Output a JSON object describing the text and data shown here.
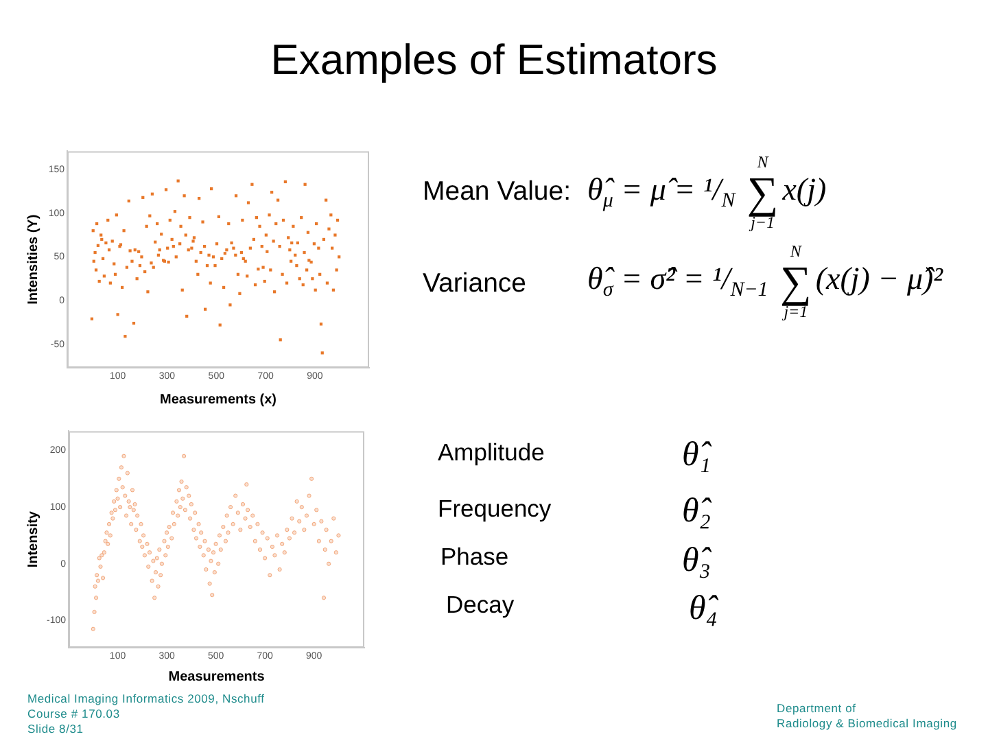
{
  "chart_data": [
    {
      "type": "scatter",
      "xlabel": "Measurements (x)",
      "ylabel": "Intensities (Y)",
      "color": "#e8782a",
      "marker": "square",
      "xlim": [
        -105,
        1120
      ],
      "ylim": [
        -77,
        171
      ],
      "xticks": [
        100,
        300,
        500,
        700,
        900
      ],
      "yticks": [
        -50,
        0,
        50,
        100,
        150
      ],
      "x": [
        -5,
        0,
        3,
        8,
        12,
        15,
        20,
        25,
        32,
        35,
        40,
        45,
        52,
        60,
        65,
        70,
        78,
        85,
        90,
        95,
        100,
        108,
        112,
        118,
        125,
        130,
        137,
        145,
        150,
        158,
        165,
        170,
        178,
        185,
        190,
        197,
        202,
        210,
        217,
        222,
        230,
        236,
        240,
        245,
        252,
        260,
        265,
        270,
        277,
        285,
        290,
        296,
        302,
        306,
        312,
        320,
        326,
        332,
        337,
        345,
        352,
        356,
        362,
        370,
        376,
        380,
        387,
        392,
        400,
        406,
        410,
        418,
        425,
        430,
        437,
        445,
        452,
        455,
        463,
        470,
        476,
        480,
        488,
        495,
        502,
        510,
        515,
        522,
        530,
        535,
        542,
        550,
        556,
        562,
        570,
        578,
        580,
        588,
        595,
        602,
        606,
        610,
        618,
        625,
        630,
        638,
        645,
        652,
        658,
        663,
        670,
        676,
        685,
        690,
        696,
        702,
        706,
        715,
        720,
        725,
        732,
        736,
        742,
        750,
        757,
        760,
        768,
        772,
        780,
        786,
        792,
        798,
        803,
        806,
        812,
        820,
        826,
        830,
        838,
        845,
        852,
        857,
        860,
        867,
        872,
        876,
        885,
        890,
        897,
        902,
        906,
        915,
        920,
        925,
        930,
        936,
        945,
        950,
        957,
        965,
        970,
        975,
        982,
        988,
        992,
        998
      ],
      "values": [
        -21,
        80,
        45,
        55,
        35,
        88,
        63,
        22,
        75,
        70,
        48,
        28,
        66,
        92,
        58,
        20,
        68,
        42,
        30,
        98,
        -16,
        62,
        64,
        15,
        80,
        -41,
        38,
        114,
        57,
        45,
        -26,
        58,
        25,
        56,
        40,
        50,
        118,
        33,
        85,
        10,
        97,
        43,
        122,
        38,
        67,
        88,
        52,
        58,
        76,
        46,
        45,
        127,
        60,
        44,
        92,
        70,
        62,
        102,
        50,
        137,
        65,
        85,
        12,
        120,
        75,
        -18,
        58,
        95,
        60,
        68,
        72,
        45,
        30,
        117,
        55,
        90,
        62,
        -10,
        40,
        52,
        20,
        128,
        50,
        40,
        65,
        96,
        -28,
        48,
        15,
        54,
        58,
        88,
        -5,
        66,
        60,
        52,
        120,
        30,
        8,
        55,
        92,
        48,
        45,
        28,
        112,
        60,
        133,
        70,
        18,
        95,
        36,
        85,
        62,
        38,
        22,
        75,
        56,
        98,
        35,
        124,
        68,
        10,
        88,
        115,
        62,
        -45,
        30,
        92,
        136,
        20,
        72,
        58,
        45,
        66,
        85,
        52,
        40,
        66,
        25,
        95,
        18,
        55,
        133,
        35,
        78,
        46,
        44,
        25,
        65,
        12,
        88,
        60,
        30,
        -27,
        -60,
        70,
        115,
        20,
        82,
        98,
        60,
        12,
        75,
        35,
        92,
        50
      ]
    },
    {
      "type": "scatter",
      "xlabel": "Measurements",
      "ylabel": "Intensity",
      "color": "#f3a87c",
      "marker": "circle",
      "xlim": [
        -100,
        1105
      ],
      "ylim": [
        -148,
        234
      ],
      "xticks": [
        100,
        300,
        500,
        700,
        900
      ],
      "yticks": [
        -100,
        0,
        100,
        200
      ],
      "x": [
        0,
        5,
        8,
        12,
        15,
        20,
        25,
        30,
        35,
        40,
        45,
        50,
        55,
        60,
        65,
        70,
        75,
        80,
        85,
        90,
        95,
        100,
        105,
        110,
        115,
        120,
        125,
        130,
        135,
        140,
        145,
        150,
        155,
        160,
        165,
        170,
        175,
        180,
        190,
        195,
        200,
        205,
        210,
        220,
        225,
        230,
        240,
        245,
        250,
        255,
        260,
        265,
        270,
        275,
        280,
        290,
        295,
        300,
        305,
        310,
        320,
        325,
        330,
        340,
        345,
        350,
        355,
        360,
        365,
        370,
        375,
        380,
        390,
        395,
        400,
        410,
        415,
        420,
        430,
        435,
        440,
        450,
        455,
        460,
        470,
        475,
        480,
        485,
        490,
        495,
        500,
        510,
        515,
        520,
        530,
        540,
        545,
        550,
        560,
        570,
        580,
        590,
        600,
        610,
        620,
        625,
        630,
        640,
        650,
        660,
        670,
        680,
        690,
        700,
        710,
        720,
        730,
        740,
        750,
        760,
        770,
        780,
        790,
        800,
        810,
        820,
        830,
        840,
        850,
        860,
        870,
        880,
        890,
        900,
        910,
        920,
        930,
        940,
        945,
        950,
        960,
        970,
        980,
        990,
        1000
      ],
      "values": [
        -115,
        -85,
        -40,
        -60,
        -20,
        -30,
        10,
        -5,
        15,
        -25,
        20,
        40,
        55,
        35,
        70,
        50,
        90,
        80,
        110,
        95,
        130,
        115,
        150,
        100,
        170,
        135,
        190,
        120,
        85,
        160,
        110,
        100,
        70,
        130,
        95,
        105,
        60,
        85,
        40,
        70,
        30,
        50,
        15,
        35,
        -5,
        20,
        -30,
        5,
        -60,
        -15,
        10,
        -40,
        25,
        -20,
        0,
        40,
        15,
        55,
        30,
        65,
        45,
        90,
        70,
        110,
        85,
        130,
        100,
        145,
        115,
        190,
        95,
        135,
        120,
        80,
        105,
        60,
        90,
        45,
        70,
        30,
        55,
        15,
        40,
        -10,
        25,
        -35,
        5,
        -55,
        20,
        -15,
        35,
        0,
        50,
        25,
        65,
        40,
        85,
        55,
        100,
        70,
        120,
        90,
        60,
        105,
        80,
        140,
        95,
        65,
        85,
        40,
        70,
        25,
        55,
        10,
        45,
        -20,
        30,
        15,
        50,
        -10,
        35,
        20,
        60,
        45,
        80,
        55,
        110,
        75,
        100,
        60,
        85,
        120,
        150,
        70,
        95,
        40,
        75,
        -60,
        25,
        60,
        0,
        40,
        80,
        20,
        50
      ]
    },
    {
      "type": "other",
      "title": "Examples of Estimators",
      "annotations": [
        "Mean Value:",
        "θ̂$_{μ}$ = μ̂ = ¹/$_{N}$ ∑$_{j−1}$$^{N}$x(j)",
        "Variance",
        "θ̂$_{σ}$ = σ̂² = ¹/$_{N−1}$ ∑$_{j=1}$$^{N}$(x(j) − μ̂)²",
        "Amplitude",
        "θ̂₁",
        "Frequency",
        "θ̂₂",
        "Phase",
        "θ̂₃",
        "Decay",
        "θ̂₄",
        "Medical Imaging Informatics 2009, Nschuff",
        "Course # 170.03",
        "Slide 8/31",
        "Department of",
        "Radiology & Biomedical Imaging"
      ]
    }
  ]
}
